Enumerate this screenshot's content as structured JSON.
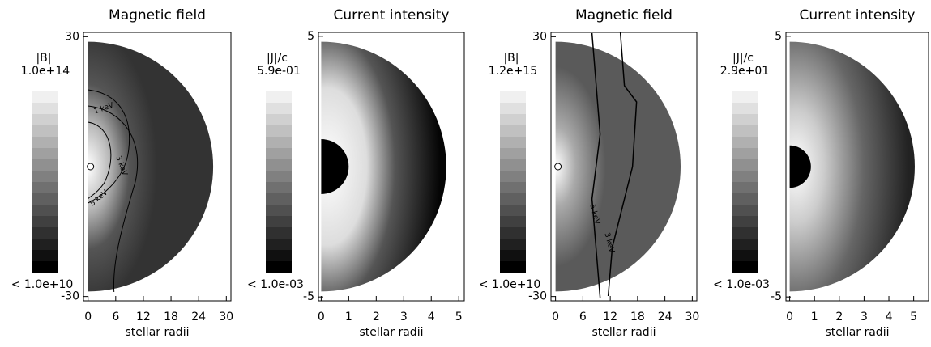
{
  "chart_data": [
    {
      "type": "image",
      "title": "Magnetic field",
      "xlabel": "stellar radii",
      "xlim": [
        -1,
        31
      ],
      "xticks": [
        0,
        6,
        12,
        18,
        24,
        30
      ],
      "ylim": [
        -31,
        31
      ],
      "yticks": [
        -30,
        30
      ],
      "colorbar": {
        "label": "|B|",
        "max": {
          "value": 100000000000000.0,
          "label": "1.0e+14"
        },
        "min": {
          "value": 10000000000.0,
          "label": "< 1.0e+10"
        }
      },
      "contour_labels": [
        "1 keV",
        "3 keV",
        "5 keV"
      ]
    },
    {
      "type": "image",
      "title": "Current intensity",
      "xlabel": "stellar radii",
      "xlim": [
        -0.1,
        5.2
      ],
      "xticks": [
        0,
        1,
        2,
        3,
        4,
        5
      ],
      "ylim": [
        -5.15,
        5.15
      ],
      "yticks": [
        -5,
        5
      ],
      "colorbar": {
        "label": "|J|/c",
        "max": {
          "value": 0.59,
          "label": "5.9e-01"
        },
        "min": {
          "value": 0.001,
          "label": "< 1.0e-03"
        }
      }
    },
    {
      "type": "image",
      "title": "Magnetic field",
      "xlabel": "stellar radii",
      "xlim": [
        -1,
        31
      ],
      "xticks": [
        0,
        6,
        12,
        18,
        24,
        30
      ],
      "ylim": [
        -31,
        31
      ],
      "yticks": [
        -30,
        30
      ],
      "colorbar": {
        "label": "|B|",
        "max": {
          "value": 1200000000000000.0,
          "label": "1.2e+15"
        },
        "min": {
          "value": 10000000000.0,
          "label": "< 1.0e+10"
        }
      },
      "contour_labels": [
        "5 keV",
        "3 keV"
      ]
    },
    {
      "type": "image",
      "title": "Current intensity",
      "xlabel": "stellar radii",
      "xlim": [
        -0.15,
        5.6
      ],
      "xticks": [
        0,
        1,
        2,
        3,
        4,
        5
      ],
      "ylim": [
        -5.15,
        5.15
      ],
      "yticks": [
        -5,
        5
      ],
      "colorbar": {
        "label": "|J|/c",
        "max": {
          "value": 29,
          "label": "2.9e+01"
        },
        "min": {
          "value": 0.001,
          "label": "< 1.0e-03"
        }
      }
    }
  ]
}
